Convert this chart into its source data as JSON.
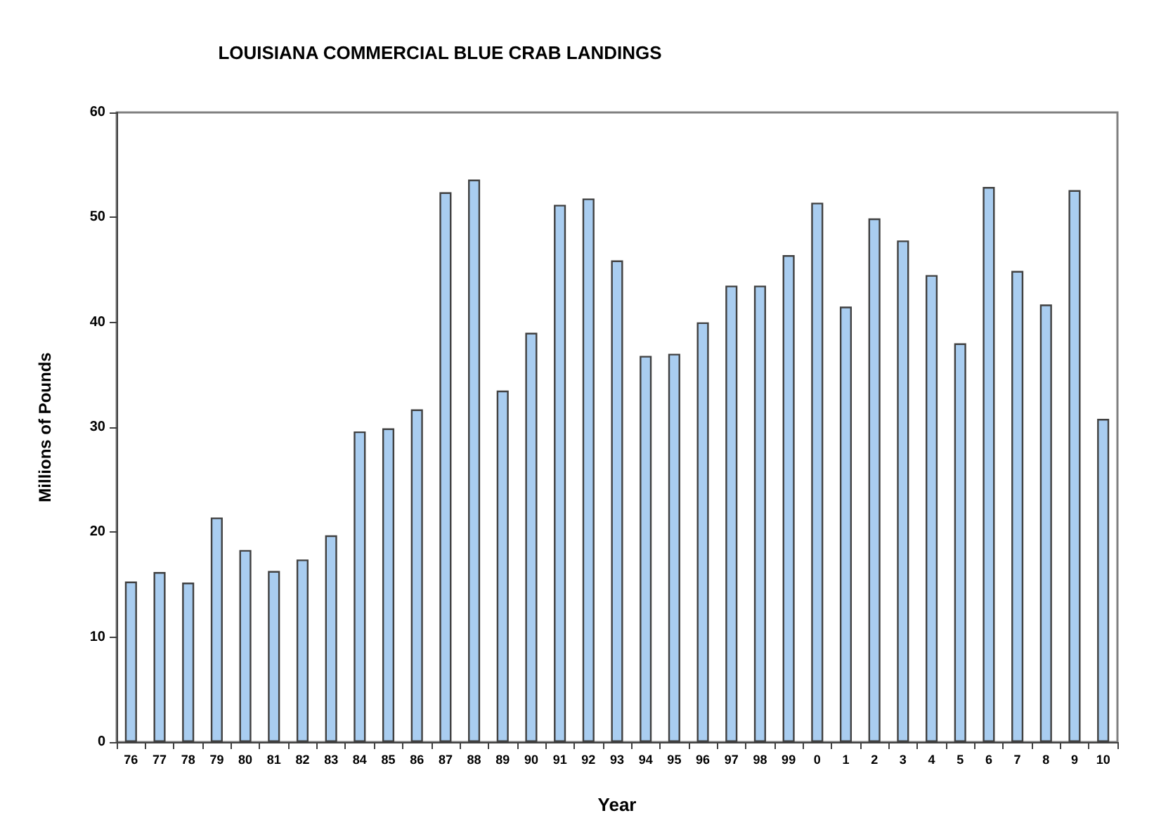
{
  "chart_data": {
    "type": "bar",
    "title": "LOUISIANA COMMERCIAL BLUE CRAB LANDINGS",
    "xlabel": "Year",
    "ylabel": "Millions of Pounds",
    "categories": [
      "76",
      "77",
      "78",
      "79",
      "80",
      "81",
      "82",
      "83",
      "84",
      "85",
      "86",
      "87",
      "88",
      "89",
      "90",
      "91",
      "92",
      "93",
      "94",
      "95",
      "96",
      "97",
      "98",
      "99",
      "0",
      "1",
      "2",
      "3",
      "4",
      "5",
      "6",
      "7",
      "8",
      "9",
      "10"
    ],
    "values": [
      15.3,
      16.2,
      15.2,
      21.4,
      18.3,
      16.3,
      17.4,
      19.7,
      29.6,
      29.9,
      31.7,
      52.4,
      53.6,
      33.5,
      39.0,
      51.2,
      51.8,
      45.9,
      36.8,
      37.0,
      40.0,
      43.5,
      43.5,
      46.4,
      51.4,
      41.5,
      49.9,
      47.8,
      44.5,
      38.0,
      52.9,
      44.9,
      41.7,
      52.6,
      30.8
    ],
    "color": "#a9cdf0",
    "ylim": [
      0,
      60
    ],
    "yticks": [
      0,
      10,
      20,
      30,
      40,
      50,
      60
    ],
    "grid": false
  }
}
